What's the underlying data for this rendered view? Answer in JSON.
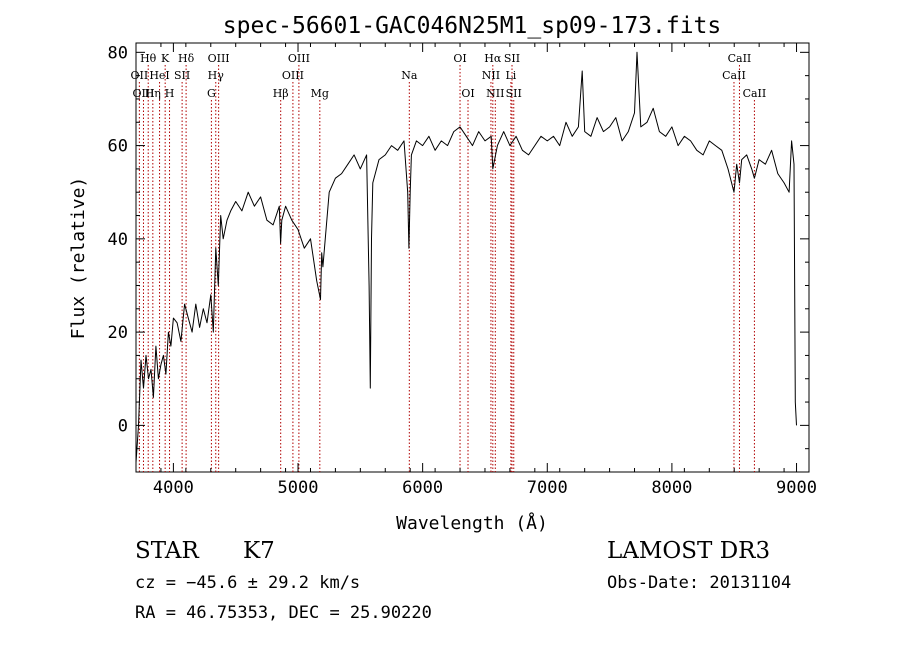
{
  "chart_data": {
    "type": "line",
    "title": "spec-56601-GAC046N25M1_sp09-173.fits",
    "xlabel": "Wavelength (Å)",
    "ylabel": "Flux (relative)",
    "xlim": [
      3700,
      9100
    ],
    "ylim": [
      -10,
      82
    ],
    "xticks": [
      4000,
      5000,
      6000,
      7000,
      8000,
      9000
    ],
    "yticks": [
      0,
      20,
      40,
      60,
      80
    ],
    "series": [
      {
        "name": "flux",
        "x": [
          3700,
          3720,
          3740,
          3760,
          3780,
          3800,
          3820,
          3840,
          3860,
          3880,
          3900,
          3920,
          3940,
          3960,
          3980,
          4000,
          4030,
          4060,
          4090,
          4120,
          4150,
          4180,
          4210,
          4240,
          4270,
          4300,
          4320,
          4340,
          4360,
          4380,
          4400,
          4430,
          4460,
          4500,
          4550,
          4600,
          4650,
          4700,
          4750,
          4800,
          4850,
          4860,
          4870,
          4900,
          4950,
          5000,
          5050,
          5100,
          5150,
          5180,
          5190,
          5200,
          5250,
          5300,
          5350,
          5400,
          5450,
          5500,
          5550,
          5570,
          5580,
          5590,
          5600,
          5650,
          5700,
          5750,
          5800,
          5850,
          5880,
          5890,
          5900,
          5910,
          5950,
          6000,
          6050,
          6100,
          6150,
          6200,
          6250,
          6300,
          6350,
          6400,
          6450,
          6500,
          6550,
          6563,
          6600,
          6650,
          6700,
          6750,
          6800,
          6850,
          6900,
          6950,
          7000,
          7050,
          7100,
          7150,
          7200,
          7250,
          7280,
          7300,
          7350,
          7400,
          7450,
          7500,
          7550,
          7600,
          7650,
          7700,
          7720,
          7750,
          7800,
          7850,
          7900,
          7950,
          8000,
          8050,
          8100,
          8150,
          8200,
          8250,
          8300,
          8350,
          8400,
          8450,
          8498,
          8520,
          8542,
          8560,
          8600,
          8640,
          8662,
          8700,
          8750,
          8800,
          8850,
          8900,
          8940,
          8960,
          8980,
          8990,
          9000
        ],
        "y": [
          -8,
          0,
          14,
          8,
          15,
          10,
          12,
          6,
          17,
          10,
          13,
          15,
          11,
          20,
          17,
          23,
          22,
          18,
          26,
          23,
          20,
          26,
          21,
          25,
          22,
          28,
          20,
          38,
          30,
          45,
          40,
          44,
          46,
          48,
          46,
          50,
          47,
          49,
          44,
          43,
          47,
          39,
          44,
          47,
          44,
          42,
          38,
          40,
          31,
          27,
          37,
          34,
          50,
          53,
          54,
          56,
          58,
          55,
          58,
          30,
          8,
          40,
          52,
          57,
          58,
          60,
          59,
          61,
          50,
          38,
          50,
          58,
          61,
          60,
          62,
          59,
          61,
          60,
          63,
          64,
          62,
          60,
          63,
          61,
          62,
          55,
          60,
          63,
          60,
          62,
          59,
          58,
          60,
          62,
          61,
          62,
          60,
          65,
          62,
          64,
          76,
          63,
          62,
          66,
          63,
          64,
          66,
          61,
          63,
          67,
          80,
          64,
          65,
          68,
          63,
          62,
          64,
          60,
          62,
          61,
          59,
          58,
          61,
          60,
          59,
          55,
          50,
          56,
          52,
          57,
          58,
          55,
          53,
          57,
          56,
          59,
          54,
          52,
          50,
          61,
          56,
          5,
          0
        ],
        "color": "#000000"
      }
    ],
    "lines": [
      {
        "label": "Hθ",
        "x": 3798,
        "row": 1
      },
      {
        "label": "OII",
        "x": 3727,
        "row": 2
      },
      {
        "label": "OIII",
        "x": 3760,
        "row": 3
      },
      {
        "label": "K",
        "x": 3934,
        "row": 1
      },
      {
        "label": "HeI",
        "x": 3889,
        "row": 2
      },
      {
        "label": "Hη",
        "x": 3835,
        "row": 3
      },
      {
        "label": "H",
        "x": 3969,
        "row": 3
      },
      {
        "label": "Hδ",
        "x": 4102,
        "row": 1
      },
      {
        "label": "SII",
        "x": 4070,
        "row": 2
      },
      {
        "label": "OIII",
        "x": 4363,
        "row": 1
      },
      {
        "label": "Hγ",
        "x": 4340,
        "row": 2
      },
      {
        "label": "G",
        "x": 4305,
        "row": 3
      },
      {
        "label": "OIII",
        "x": 5007,
        "row": 1
      },
      {
        "label": "OIII",
        "x": 4959,
        "row": 2
      },
      {
        "label": "Hβ",
        "x": 4861,
        "row": 3
      },
      {
        "label": "Mg",
        "x": 5175,
        "row": 3
      },
      {
        "label": "Na",
        "x": 5893,
        "row": 2
      },
      {
        "label": "OI",
        "x": 6300,
        "row": 1
      },
      {
        "label": "OI",
        "x": 6364,
        "row": 3
      },
      {
        "label": "Hα",
        "x": 6563,
        "row": 1
      },
      {
        "label": "NII",
        "x": 6548,
        "row": 2
      },
      {
        "label": "NII",
        "x": 6583,
        "row": 3
      },
      {
        "label": "SII",
        "x": 6717,
        "row": 1
      },
      {
        "label": "Li",
        "x": 6708,
        "row": 2
      },
      {
        "label": "SII",
        "x": 6731,
        "row": 3
      },
      {
        "label": "CaII",
        "x": 8542,
        "row": 1
      },
      {
        "label": "CaII",
        "x": 8498,
        "row": 2
      },
      {
        "label": "CaII",
        "x": 8662,
        "row": 3
      }
    ]
  },
  "info": {
    "object_class": "STAR",
    "subclass": "K7",
    "survey": "LAMOST DR3",
    "cz": "cz = −45.6 ± 29.2 km/s",
    "obs_date": "Obs-Date: 20131104",
    "radec": "RA =  46.75353, DEC =  25.90220"
  }
}
